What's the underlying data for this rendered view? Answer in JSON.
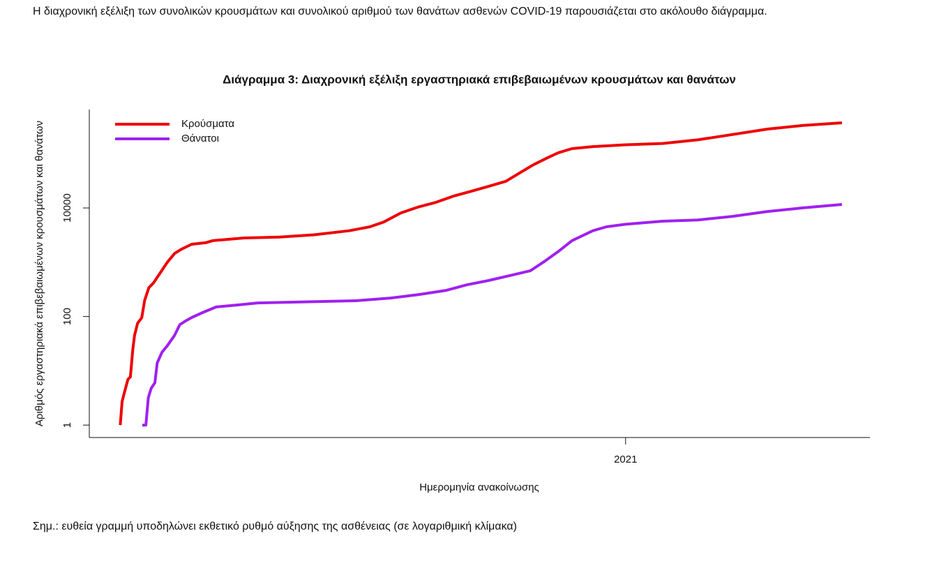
{
  "intro": "Η διαχρονική εξέλιξη των συνολικών κρουσμάτων και συνολικού αριθμού των θανάτων ασθενών COVID-19 παρουσιάζεται στο ακόλουθο διάγραμμα.",
  "note": "Σημ.: ευθεία γραμμή υποδηλώνει εκθετικό ρυθμό αύξησης της ασθένειας (σε λογαριθμική κλίμακα)",
  "chart_data": {
    "type": "line",
    "title": "Διάγραμμα 3: Διαχρονική εξέλιξη εργαστηριακά επιβεβαιωμένων κρουσμάτων και θανάτων",
    "x_label": "Ημερομηνία ανακοίνωσης",
    "y_label": "Αριθμός εργαστηριακά επιβεβαιωμένων κρουσμάτων και θανάτων",
    "y_log": true,
    "legend": "top-left",
    "xlim": [
      2020.1,
      2021.41
    ],
    "xticks": [
      2021
    ],
    "ylim": [
      0.59,
      650000
    ],
    "yticks": [
      1,
      100,
      10000
    ],
    "series": [
      {
        "name": "Κρούσματα",
        "color": "#ee0000",
        "x": [
          2020.152,
          2020.155,
          2020.159,
          2020.165,
          2020.169,
          2020.173,
          2020.176,
          2020.181,
          2020.188,
          2020.193,
          2020.2,
          2020.208,
          2020.22,
          2020.231,
          2020.243,
          2020.255,
          2020.272,
          2020.296,
          2020.307,
          2020.36,
          2020.419,
          2020.477,
          2020.536,
          2020.571,
          2020.594,
          2020.623,
          2020.653,
          2020.682,
          2020.711,
          2020.74,
          2020.77,
          2020.799,
          2020.822,
          2020.846,
          2020.869,
          2020.887,
          2020.91,
          2020.945,
          2021.0,
          2021.062,
          2021.121,
          2021.179,
          2021.238,
          2021.296,
          2021.363
        ],
        "values": [
          1,
          2.7,
          4,
          7,
          7.7,
          25,
          45,
          75,
          95,
          200,
          340,
          420,
          660,
          1000,
          1450,
          1750,
          2150,
          2300,
          2500,
          2800,
          2900,
          3200,
          3800,
          4500,
          5500,
          8100,
          10500,
          12700,
          16500,
          20200,
          25000,
          31000,
          44000,
          63000,
          84000,
          104000,
          124000,
          135000,
          146000,
          154000,
          180000,
          225000,
          284000,
          330000,
          370000
        ]
      },
      {
        "name": "Θάνατοι",
        "color": "#a020f0",
        "x": [
          2020.189,
          2020.195,
          2020.199,
          2020.204,
          2020.21,
          2020.214,
          2020.222,
          2020.231,
          2020.243,
          2020.252,
          2020.261,
          2020.272,
          2020.29,
          2020.313,
          2020.348,
          2020.383,
          2020.442,
          2020.5,
          2020.547,
          2020.606,
          2020.653,
          2020.699,
          2020.734,
          2020.77,
          2020.805,
          2020.84,
          2020.863,
          2020.887,
          2020.91,
          2020.945,
          2020.968,
          2021.0,
          2021.062,
          2021.121,
          2021.179,
          2021.238,
          2021.296,
          2021.363
        ],
        "values": [
          1,
          1,
          3.2,
          4.8,
          6,
          14,
          22,
          29,
          45,
          71,
          82,
          96,
          118,
          150,
          163,
          178,
          184,
          190,
          195,
          219,
          254,
          303,
          384,
          461,
          565,
          696,
          1020,
          1580,
          2500,
          3800,
          4500,
          5000,
          5700,
          6000,
          7000,
          8600,
          10000,
          11600
        ]
      }
    ]
  }
}
